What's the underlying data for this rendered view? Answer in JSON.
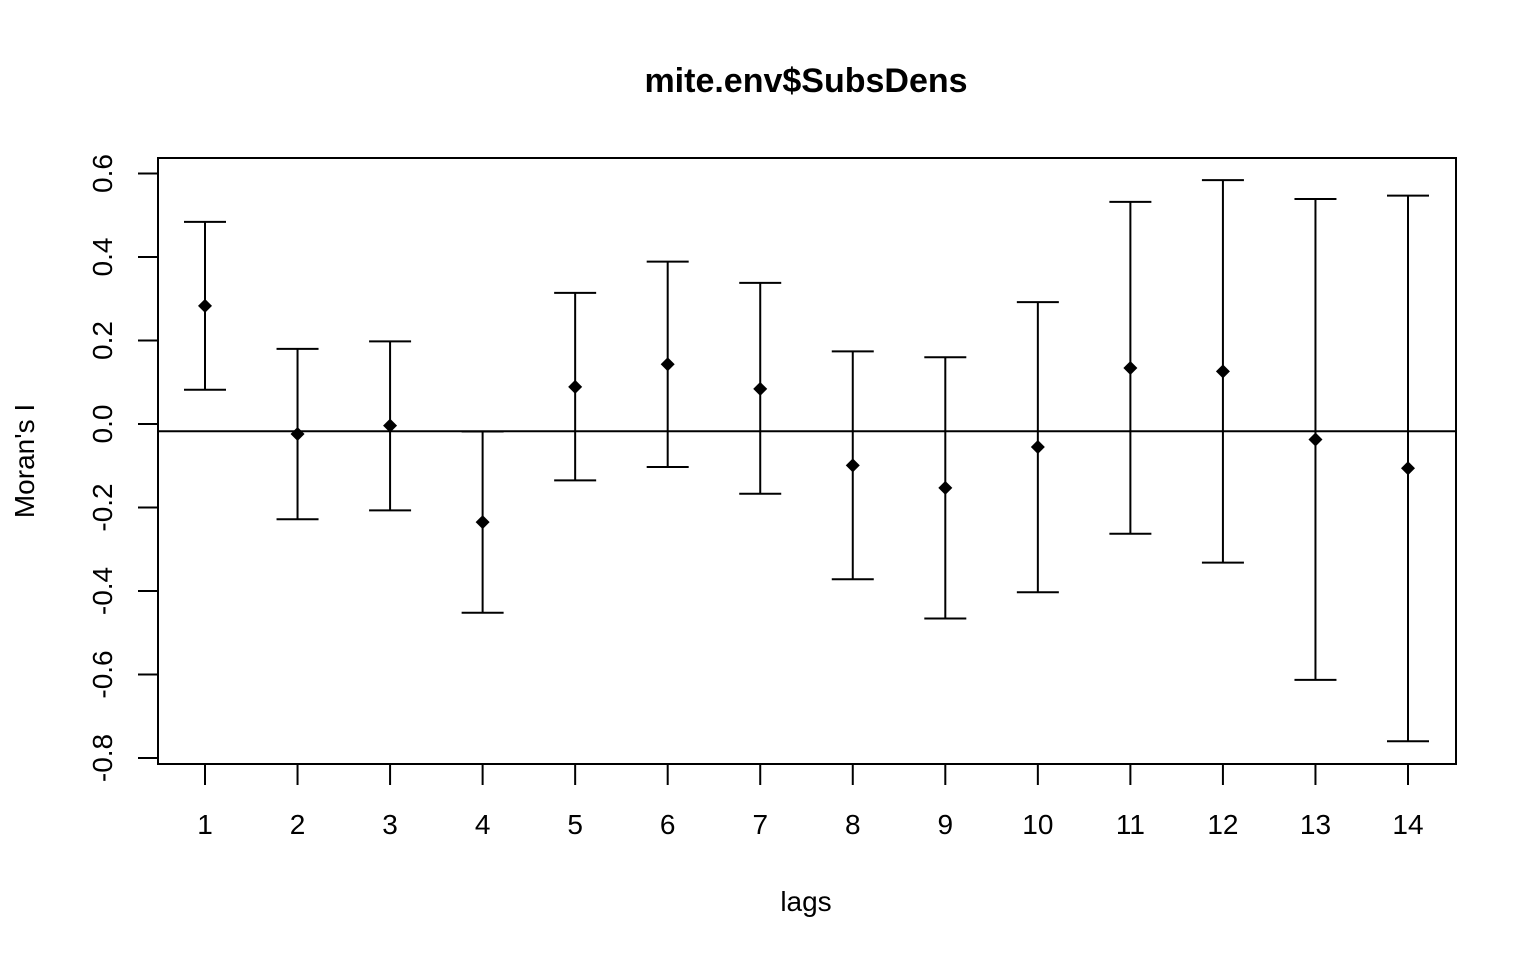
{
  "chart_data": {
    "type": "scatter",
    "title": "mite.env$SubsDens",
    "xlabel": "lags",
    "ylabel": "Moran's  I",
    "xlim": [
      0.5,
      14.5
    ],
    "ylim": [
      -0.82,
      0.64
    ],
    "x_ticks": [
      "1",
      "2",
      "3",
      "4",
      "5",
      "6",
      "7",
      "8",
      "9",
      "10",
      "11",
      "12",
      "13",
      "14"
    ],
    "y_ticks": [
      "-0.8",
      "-0.6",
      "-0.4",
      "-0.2",
      "0.0",
      "0.2",
      "0.4",
      "0.6"
    ],
    "y_tick_values": [
      -0.8,
      -0.6,
      -0.4,
      -0.2,
      0.0,
      0.2,
      0.4,
      0.6
    ],
    "reference_line": -0.0175,
    "grid": false,
    "legend": "none",
    "points": [
      {
        "lag": 1,
        "moran_i": 0.283,
        "lower": 0.082,
        "upper": 0.484
      },
      {
        "lag": 2,
        "moran_i": -0.024,
        "lower": -0.228,
        "upper": 0.18
      },
      {
        "lag": 3,
        "moran_i": -0.004,
        "lower": -0.207,
        "upper": 0.198
      },
      {
        "lag": 4,
        "moran_i": -0.235,
        "lower": -0.452,
        "upper": -0.018
      },
      {
        "lag": 5,
        "moran_i": 0.089,
        "lower": -0.135,
        "upper": 0.314
      },
      {
        "lag": 6,
        "moran_i": 0.143,
        "lower": -0.103,
        "upper": 0.389
      },
      {
        "lag": 7,
        "moran_i": 0.084,
        "lower": -0.167,
        "upper": 0.338
      },
      {
        "lag": 8,
        "moran_i": -0.099,
        "lower": -0.372,
        "upper": 0.174
      },
      {
        "lag": 9,
        "moran_i": -0.153,
        "lower": -0.466,
        "upper": 0.16
      },
      {
        "lag": 10,
        "moran_i": -0.055,
        "lower": -0.403,
        "upper": 0.292
      },
      {
        "lag": 11,
        "moran_i": 0.134,
        "lower": -0.263,
        "upper": 0.532
      },
      {
        "lag": 12,
        "moran_i": 0.126,
        "lower": -0.332,
        "upper": 0.584
      },
      {
        "lag": 13,
        "moran_i": -0.037,
        "lower": -0.613,
        "upper": 0.539
      },
      {
        "lag": 14,
        "moran_i": -0.106,
        "lower": -0.76,
        "upper": 0.547
      }
    ]
  }
}
